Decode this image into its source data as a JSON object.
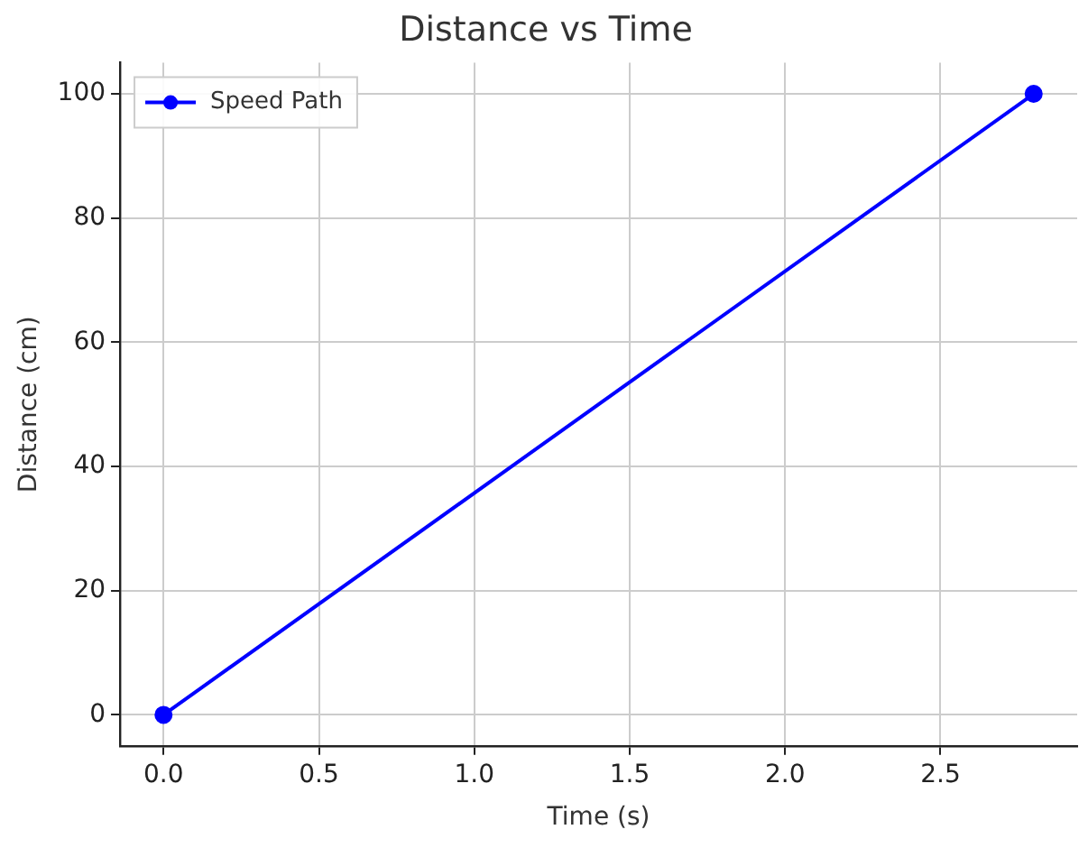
{
  "chart_data": {
    "type": "line",
    "title": "Distance vs Time",
    "xlabel": "Time (s)",
    "ylabel": "Distance (cm)",
    "x": [
      0,
      2.8
    ],
    "series": [
      {
        "name": "Speed Path",
        "color": "#0000ff",
        "values": [
          0,
          100
        ]
      }
    ],
    "xlim": [
      -0.14,
      2.94
    ],
    "xticks": [
      {
        "value": 0,
        "label": "0.0"
      },
      {
        "value": 0.5,
        "label": "0.5"
      },
      {
        "value": 1,
        "label": "1.0"
      },
      {
        "value": 1.5,
        "label": "1.5"
      },
      {
        "value": 2,
        "label": "2.0"
      },
      {
        "value": 2.5,
        "label": "2.5"
      }
    ],
    "ylim": [
      -5,
      105
    ],
    "yticks": [
      0,
      20,
      40,
      60,
      80,
      100
    ],
    "grid": true,
    "legend": "top left",
    "marker": "circle",
    "line_style": "solid"
  }
}
